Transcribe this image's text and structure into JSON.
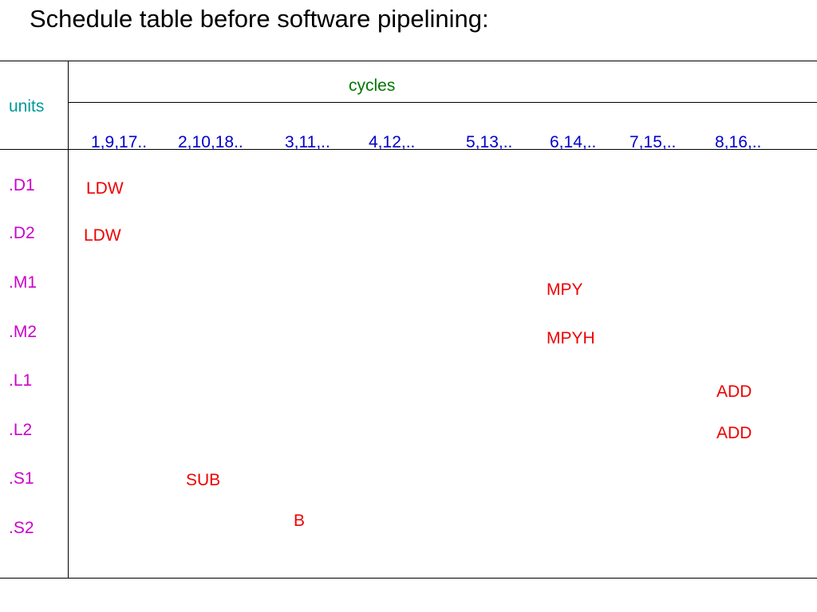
{
  "title": "Schedule table before software pipelining:",
  "table": {
    "units_header": "units",
    "cycles_header": "cycles",
    "cycle_columns": [
      "1,9,17..",
      "2,10,18..",
      "3,11,..",
      "4,12,..",
      "5,13,..",
      "6,14,..",
      "7,15,..",
      "8,16,.."
    ],
    "unit_rows": [
      ".D1",
      ".D2",
      ".M1",
      ".M2",
      ".L1",
      ".L2",
      ".S1",
      ".S2"
    ],
    "instructions": [
      {
        "unit": ".D1",
        "cycle": "1,9,17..",
        "label": "LDW"
      },
      {
        "unit": ".D2",
        "cycle": "1,9,17..",
        "label": "LDW"
      },
      {
        "unit": ".M1",
        "cycle": "6,14,..",
        "label": "MPY"
      },
      {
        "unit": ".M2",
        "cycle": "6,14,..",
        "label": "MPYH"
      },
      {
        "unit": ".L1",
        "cycle": "8,16,..",
        "label": "ADD"
      },
      {
        "unit": ".L2",
        "cycle": "8,16,..",
        "label": "ADD"
      },
      {
        "unit": ".S1",
        "cycle": "2,10,18..",
        "label": "SUB"
      },
      {
        "unit": ".S2",
        "cycle": "3,11,..",
        "label": "B"
      }
    ]
  },
  "colors": {
    "units_header": "#009999",
    "cycles_header": "#007700",
    "cycle_columns": "#0000cc",
    "unit_rows": "#cc00cc",
    "instructions": "#ee0000"
  }
}
